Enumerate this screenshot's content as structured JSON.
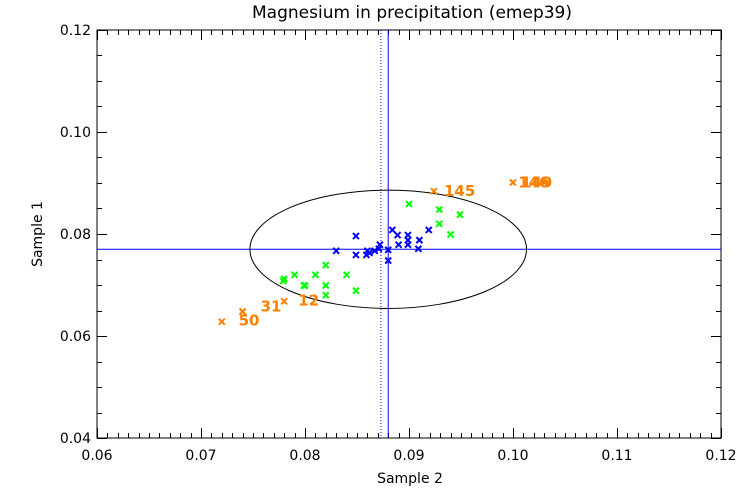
{
  "chart_data": {
    "type": "scatter",
    "title": "Magnesium in precipitation (emep39)",
    "xlabel": "Sample 2",
    "ylabel": "Sample 1",
    "xlim": [
      0.06,
      0.12
    ],
    "ylim": [
      0.04,
      0.12
    ],
    "x_ticks": [
      "0.06",
      "0.07",
      "0.08",
      "0.09",
      "0.10",
      "0.11",
      "0.12"
    ],
    "y_ticks": [
      "0.04",
      "0.06",
      "0.08",
      "0.10",
      "0.12"
    ],
    "x_tick_values": [
      0.06,
      0.07,
      0.08,
      0.09,
      0.1,
      0.11,
      0.12
    ],
    "y_tick_values": [
      0.04,
      0.06,
      0.08,
      0.1,
      0.12
    ],
    "x_minor_step": 0.001,
    "y_minor_step": 0.005,
    "grid": false,
    "colors": {
      "inner": "#0000ff",
      "middle": "#00ff00",
      "outlier": "#ff7f00",
      "ellipse": "#000000",
      "refline": "#0000ff"
    },
    "reference": {
      "median_x": 0.088,
      "median_y": 0.077,
      "assigned_x": 0.0873
    },
    "ellipse": {
      "cx": 0.088,
      "cy": 0.077,
      "rx": 0.0133,
      "ry": 0.0116
    },
    "series": [
      {
        "name": "inner",
        "color": "#0000ff",
        "points": [
          [
            0.083,
            0.0767
          ],
          [
            0.0849,
            0.0796
          ],
          [
            0.0849,
            0.0759
          ],
          [
            0.0859,
            0.0759
          ],
          [
            0.086,
            0.0767
          ],
          [
            0.0862,
            0.0763
          ],
          [
            0.0867,
            0.0767
          ],
          [
            0.0872,
            0.0779
          ],
          [
            0.0871,
            0.0771
          ],
          [
            0.088,
            0.0769
          ],
          [
            0.088,
            0.0748
          ],
          [
            0.0884,
            0.0808
          ],
          [
            0.0889,
            0.0798
          ],
          [
            0.089,
            0.0779
          ],
          [
            0.0899,
            0.0798
          ],
          [
            0.0899,
            0.0788
          ],
          [
            0.0899,
            0.0779
          ],
          [
            0.091,
            0.0788
          ],
          [
            0.0909,
            0.0771
          ],
          [
            0.0919,
            0.0808
          ]
        ]
      },
      {
        "name": "middle",
        "color": "#00ff00",
        "points": [
          [
            0.0779,
            0.0708
          ],
          [
            0.079,
            0.072
          ],
          [
            0.078,
            0.0712
          ],
          [
            0.08,
            0.0699
          ],
          [
            0.081,
            0.072
          ],
          [
            0.0799,
            0.0699
          ],
          [
            0.082,
            0.0739
          ],
          [
            0.082,
            0.0699
          ],
          [
            0.084,
            0.072
          ],
          [
            0.082,
            0.068
          ],
          [
            0.0849,
            0.0689
          ],
          [
            0.09,
            0.0859
          ],
          [
            0.0929,
            0.0848
          ],
          [
            0.0949,
            0.0838
          ],
          [
            0.0929,
            0.082
          ],
          [
            0.094,
            0.0799
          ]
        ]
      },
      {
        "name": "outlier",
        "color": "#ff7f00",
        "points": [
          {
            "x": 0.072,
            "y": 0.0628,
            "label": ""
          },
          {
            "x": 0.074,
            "y": 0.0648,
            "label": "50"
          },
          {
            "x": 0.074,
            "y": 0.0648,
            "label": "31"
          },
          {
            "x": 0.078,
            "y": 0.0668,
            "label": "12"
          },
          {
            "x": 0.0924,
            "y": 0.0884,
            "label": "145"
          },
          {
            "x": 0.1,
            "y": 0.0901,
            "label": "149"
          },
          {
            "x": 0.103,
            "y": 0.0901,
            "label": "146"
          }
        ]
      }
    ]
  }
}
